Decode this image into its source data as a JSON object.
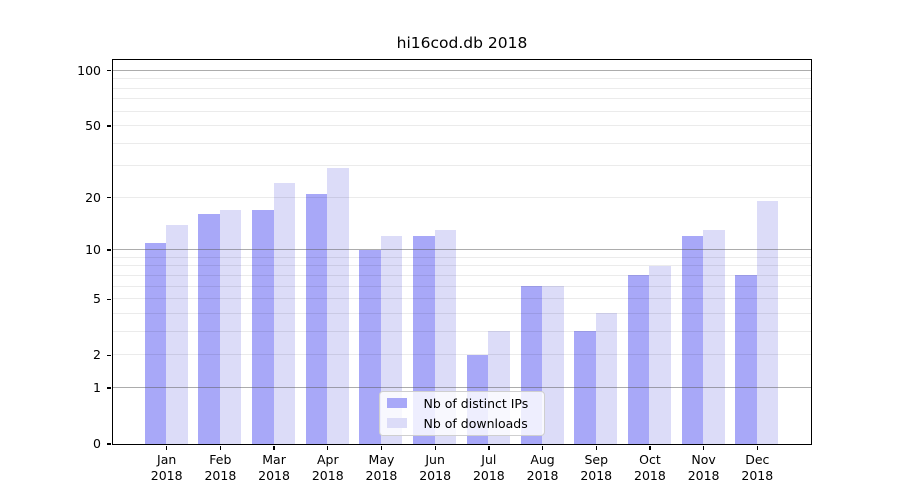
{
  "figure": {
    "title": "hi16cod.db 2018"
  },
  "y_axis": {
    "tick_labels": [
      "100",
      "50",
      "20",
      "10",
      "5",
      "2",
      "1",
      "0"
    ]
  },
  "x_axis": {
    "tick_labels": [
      "Jan 2018",
      "Feb 2018",
      "Mar 2018",
      "Apr 2018",
      "May 2018",
      "Jun 2018",
      "Jul 2018",
      "Aug 2018",
      "Sep 2018",
      "Oct 2018",
      "Nov 2018",
      "Dec 2018"
    ]
  },
  "legend": {
    "items": [
      {
        "label": "Nb of distinct IPs",
        "color": "#a8a8f8"
      },
      {
        "label": "Nb of downloads",
        "color": "#dcdcf8"
      }
    ]
  },
  "colors": {
    "bar_distinct_ips": "#a8a8f8",
    "bar_downloads": "#dcdcf8",
    "grid_major": "#b0b0b0",
    "grid_minor": "#ebebeb",
    "axis": "#000000",
    "background": "#ffffff"
  },
  "chart_data": {
    "type": "bar",
    "title": "hi16cod.db 2018",
    "categories": [
      "Jan 2018",
      "Feb 2018",
      "Mar 2018",
      "Apr 2018",
      "May 2018",
      "Jun 2018",
      "Jul 2018",
      "Aug 2018",
      "Sep 2018",
      "Oct 2018",
      "Nov 2018",
      "Dec 2018"
    ],
    "series": [
      {
        "name": "Nb of distinct IPs",
        "color": "#a8a8f8",
        "values": [
          11,
          16,
          17,
          21,
          10,
          12,
          2,
          6,
          3,
          7,
          12,
          7
        ]
      },
      {
        "name": "Nb of downloads",
        "color": "#dcdcf8",
        "values": [
          14,
          17,
          24,
          29,
          12,
          13,
          3,
          6,
          4,
          8,
          13,
          19
        ]
      }
    ],
    "yscale": "log1p",
    "ylim": [
      0,
      114.4
    ],
    "yticks": [
      100,
      50,
      20,
      10,
      5,
      2,
      1,
      0
    ],
    "grid": true,
    "legend_position": "lower center"
  }
}
